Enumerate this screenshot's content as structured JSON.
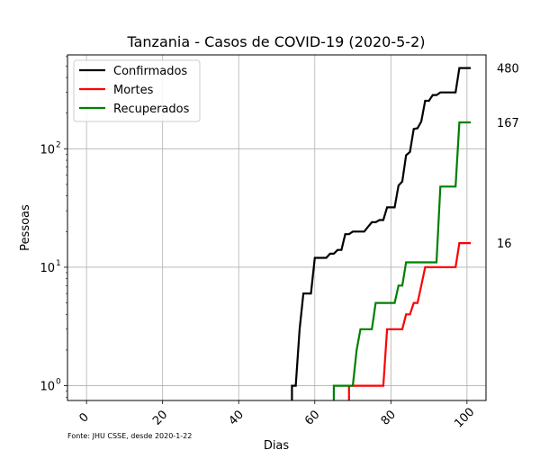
{
  "chart_data": {
    "type": "line",
    "title": "Tanzania - Casos de COVID-19 (2020-5-2)",
    "xlabel": "Dias",
    "ylabel": "Pessoas",
    "source_note": "Fonte: JHU CSSE, desde 2020-1-22",
    "x_scale": "linear",
    "y_scale": "log",
    "xlim": [
      -5,
      105
    ],
    "ylim": [
      0.75,
      620
    ],
    "x_ticks": [
      0,
      20,
      40,
      60,
      80,
      100
    ],
    "x_tick_labels": [
      "0",
      "20",
      "40",
      "60",
      "80",
      "100"
    ],
    "y_ticks": [
      1,
      10,
      100
    ],
    "y_tick_labels": [
      "10",
      "10",
      "10"
    ],
    "y_tick_exponents": [
      "0",
      "1",
      "2"
    ],
    "grid": true,
    "legend_position": "top-left",
    "series": [
      {
        "name": "Confirmados",
        "color": "#000000",
        "final_label": "480",
        "points": [
          [
            54,
            0.7
          ],
          [
            54,
            1
          ],
          [
            55,
            1
          ],
          [
            56,
            3
          ],
          [
            57,
            6
          ],
          [
            59,
            6
          ],
          [
            60,
            12
          ],
          [
            63,
            12
          ],
          [
            64,
            13
          ],
          [
            65,
            13
          ],
          [
            66,
            14
          ],
          [
            67,
            14
          ],
          [
            68,
            19
          ],
          [
            69,
            19
          ],
          [
            70,
            20
          ],
          [
            73,
            20
          ],
          [
            74,
            22
          ],
          [
            75,
            24
          ],
          [
            76,
            24
          ],
          [
            77,
            25
          ],
          [
            78,
            25
          ],
          [
            79,
            32
          ],
          [
            81,
            32
          ],
          [
            82,
            49
          ],
          [
            83,
            53
          ],
          [
            84,
            88
          ],
          [
            85,
            94
          ],
          [
            86,
            147
          ],
          [
            87,
            149
          ],
          [
            88,
            170
          ],
          [
            89,
            254
          ],
          [
            90,
            254
          ],
          [
            91,
            284
          ],
          [
            92,
            284
          ],
          [
            93,
            299
          ],
          [
            97,
            299
          ],
          [
            98,
            480
          ],
          [
            101,
            480
          ]
        ]
      },
      {
        "name": "Mortes",
        "color": "#ff0000",
        "final_label": "16",
        "points": [
          [
            69,
            0.7
          ],
          [
            69,
            1
          ],
          [
            78,
            1
          ],
          [
            79,
            3
          ],
          [
            83,
            3
          ],
          [
            84,
            4
          ],
          [
            85,
            4
          ],
          [
            86,
            5
          ],
          [
            87,
            5
          ],
          [
            88,
            7
          ],
          [
            89,
            10
          ],
          [
            97,
            10
          ],
          [
            98,
            16
          ],
          [
            101,
            16
          ]
        ]
      },
      {
        "name": "Recuperados",
        "color": "#008000",
        "final_label": "167",
        "points": [
          [
            65,
            0.7
          ],
          [
            65,
            1
          ],
          [
            70,
            1
          ],
          [
            71,
            2
          ],
          [
            72,
            3
          ],
          [
            75,
            3
          ],
          [
            76,
            5
          ],
          [
            81,
            5
          ],
          [
            82,
            7
          ],
          [
            83,
            7
          ],
          [
            84,
            11
          ],
          [
            92,
            11
          ],
          [
            93,
            48
          ],
          [
            97,
            48
          ],
          [
            98,
            167
          ],
          [
            101,
            167
          ]
        ]
      }
    ]
  }
}
